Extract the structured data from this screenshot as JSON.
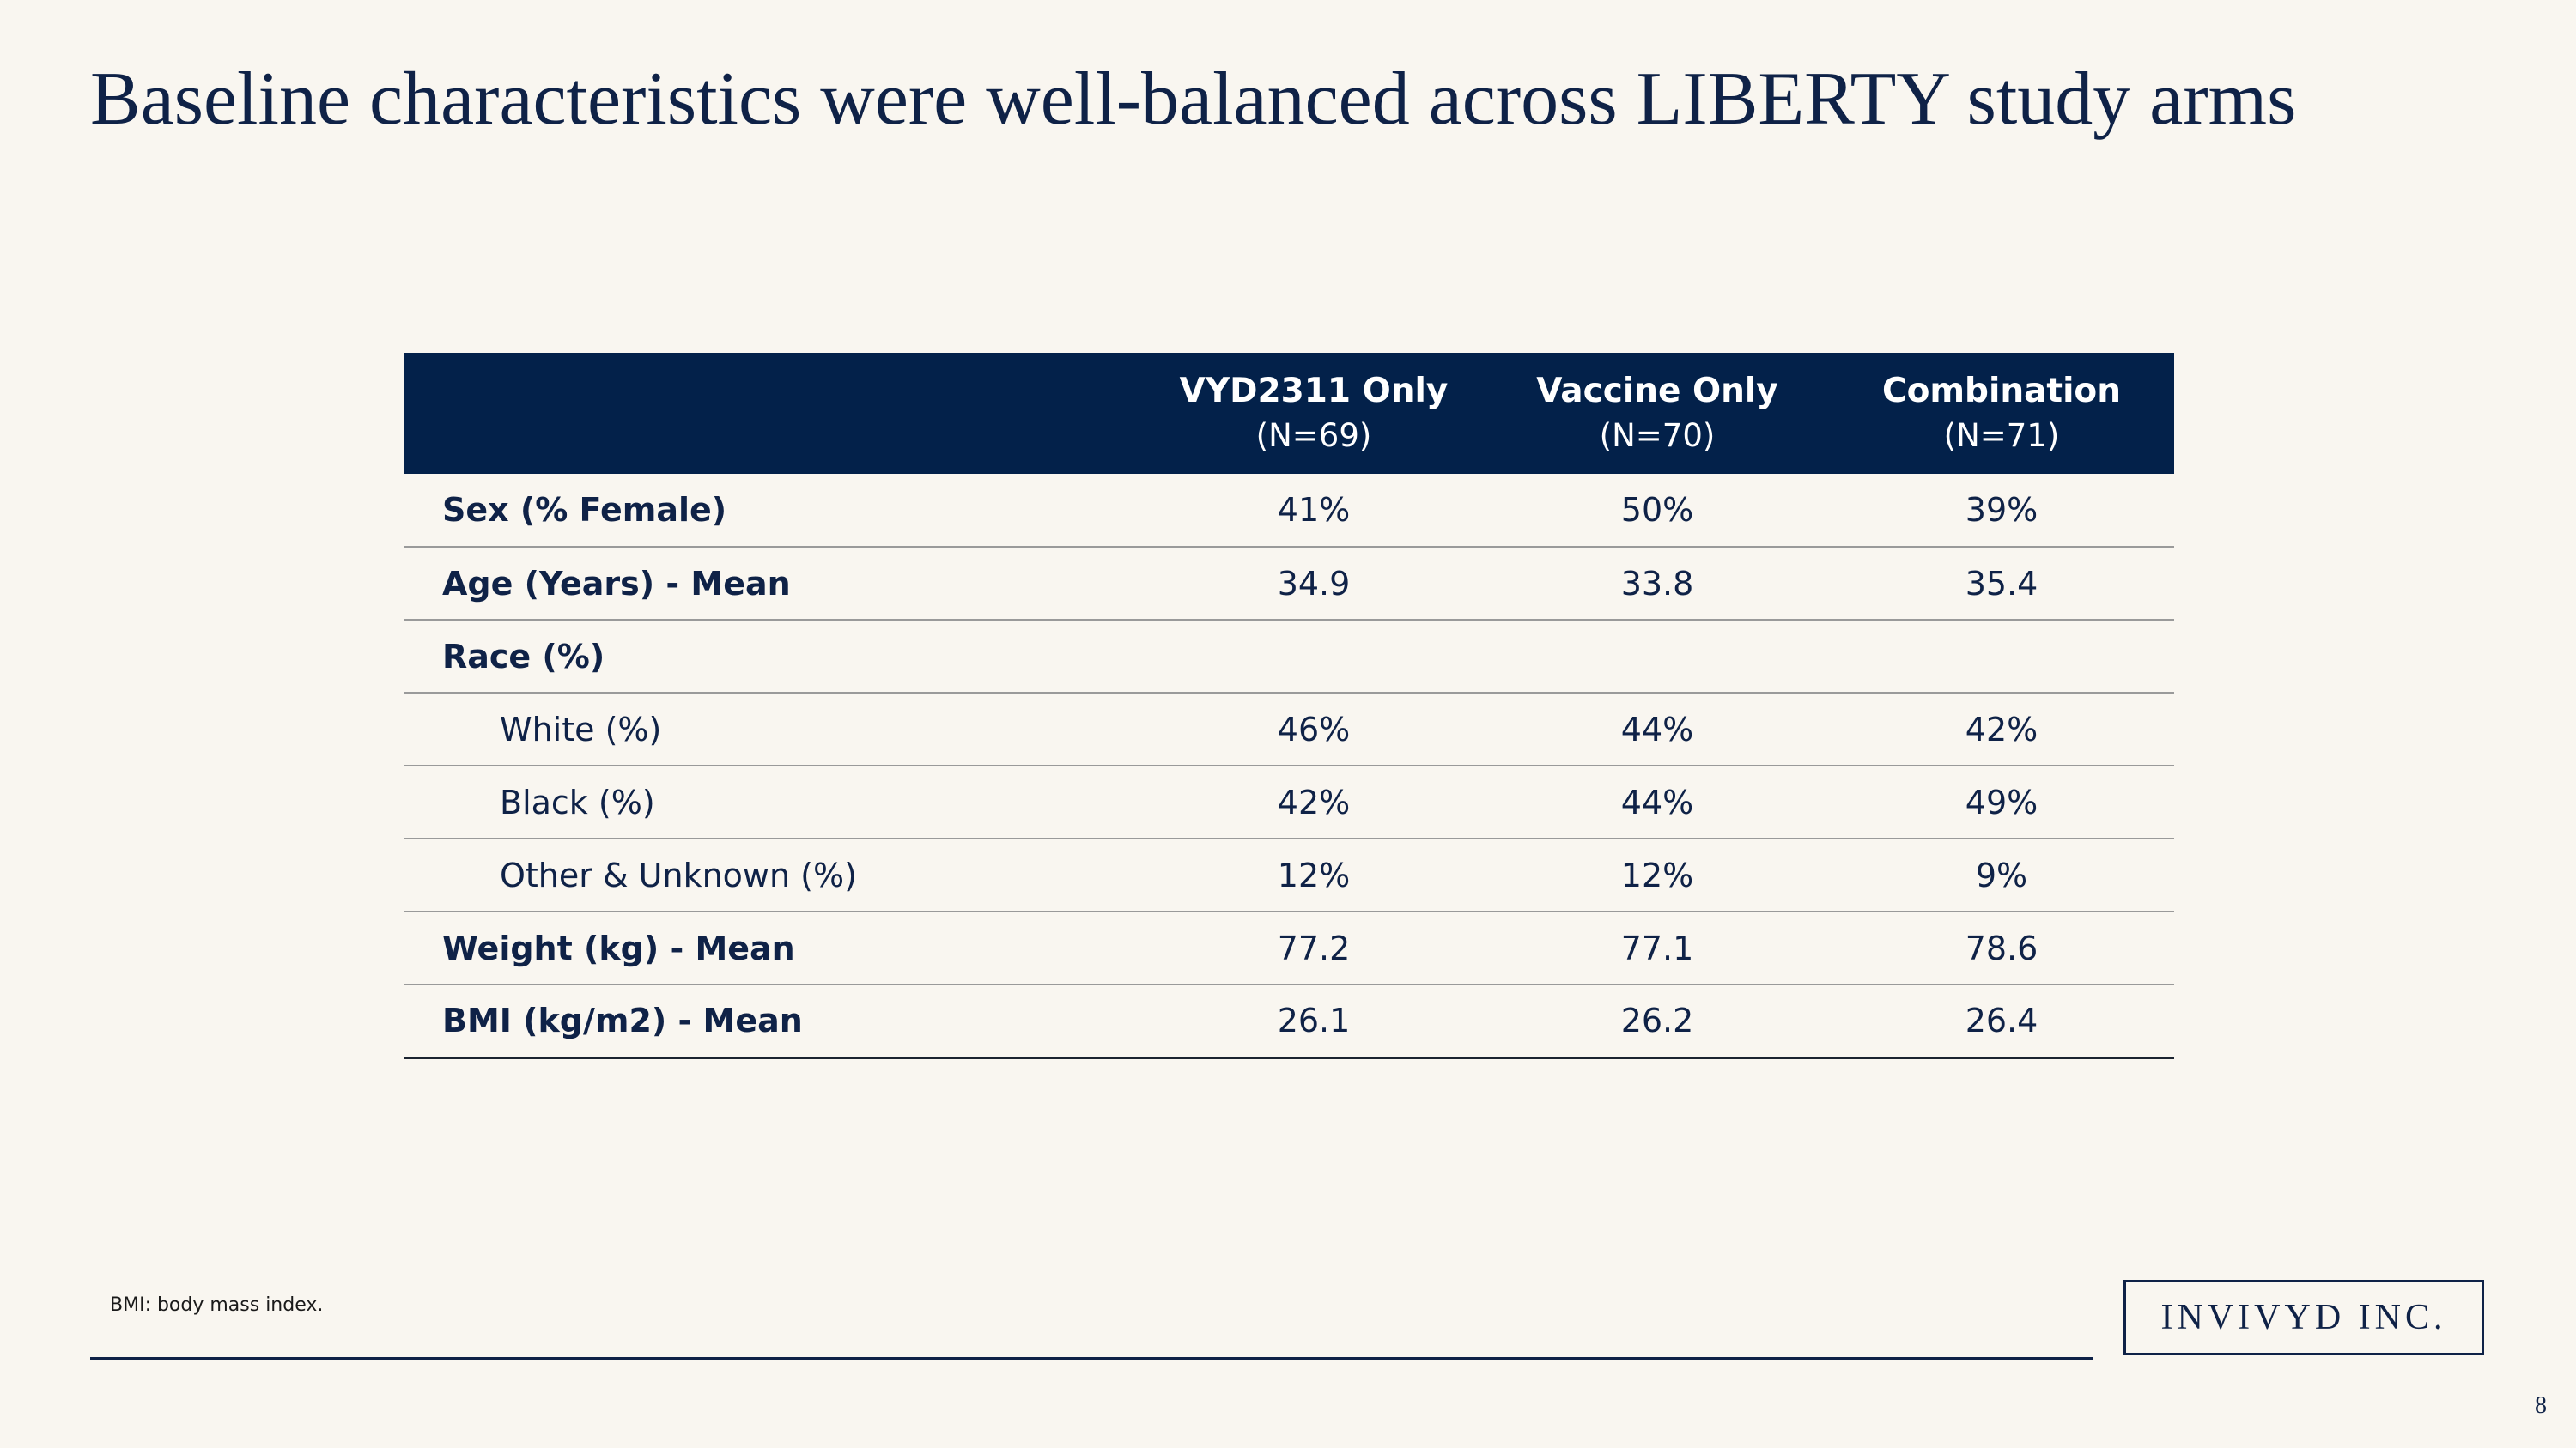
{
  "title": "Baseline characteristics were well-balanced across LIBERTY study arms",
  "table": {
    "columns": [
      {
        "name": "",
        "n": ""
      },
      {
        "name": "VYD2311 Only",
        "n": "(N=69)"
      },
      {
        "name": "Vaccine Only",
        "n": "(N=70)"
      },
      {
        "name": "Combination",
        "n": "(N=71)"
      }
    ],
    "rows": [
      {
        "label": "Sex (% Female)",
        "values": [
          "41%",
          "50%",
          "39%"
        ]
      },
      {
        "label": "Age (Years) - Mean",
        "values": [
          "34.9",
          "33.8",
          "35.4"
        ]
      },
      {
        "label": "Race (%)",
        "values": [
          "",
          "",
          ""
        ]
      },
      {
        "label": "White (%)",
        "values": [
          "46%",
          "44%",
          "42%"
        ]
      },
      {
        "label": "Black (%)",
        "values": [
          "42%",
          "44%",
          "49%"
        ]
      },
      {
        "label": "Other & Unknown (%)",
        "values": [
          "12%",
          "12%",
          "9%"
        ]
      },
      {
        "label": "Weight (kg) - Mean",
        "values": [
          "77.2",
          "77.1",
          "78.6"
        ]
      },
      {
        "label": "BMI (kg/m2) - Mean",
        "values": [
          "26.1",
          "26.2",
          "26.4"
        ]
      }
    ]
  },
  "footnote": "BMI: body mass index.",
  "logo_text": "INVIVYD INC.",
  "page_number": "8",
  "colors": {
    "background": "#f9f6f0",
    "header_fill": "#03214a",
    "text": "#0f2247"
  }
}
